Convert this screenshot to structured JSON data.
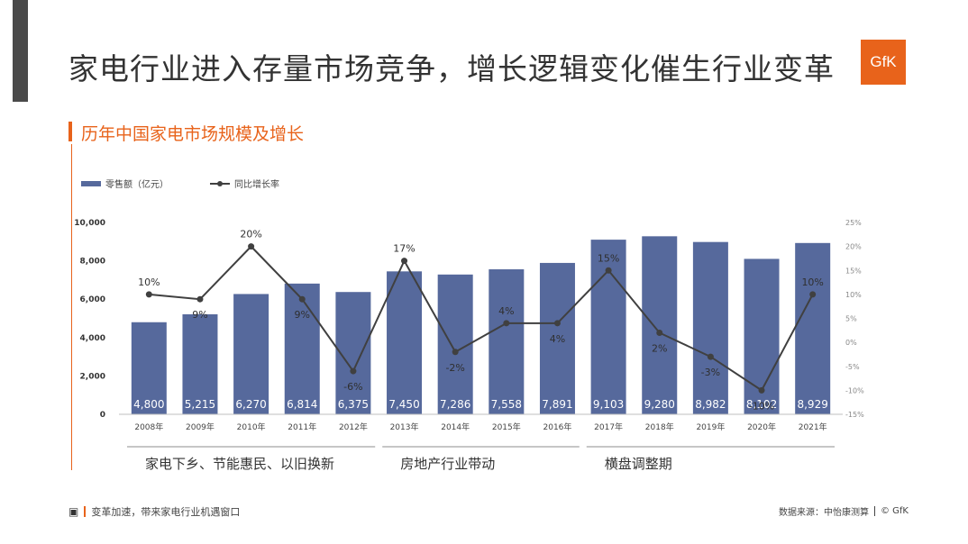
{
  "page": {
    "title": "家电行业进入存量市场竞争，增长逻辑变化催生行业变革",
    "logo_text": "GfK",
    "section_title": "历年中国家电市场规模及增长",
    "footer_left": "变革加速，带来家电行业机遇窗口",
    "footer_source": "数据来源：中怡康测算",
    "footer_copyright": "© GfK",
    "accent_color": "#e8631b"
  },
  "chart_data": {
    "type": "bar",
    "categories": [
      "2008年",
      "2009年",
      "2010年",
      "2011年",
      "2012年",
      "2013年",
      "2014年",
      "2015年",
      "2016年",
      "2017年",
      "2018年",
      "2019年",
      "2020年",
      "2021年"
    ],
    "series": [
      {
        "name": "零售额（亿元）",
        "type": "bar",
        "axis": "left",
        "color": "#56699c",
        "values": [
          4800,
          5215,
          6270,
          6814,
          6375,
          7450,
          7286,
          7558,
          7891,
          9103,
          9280,
          8982,
          8102,
          8929
        ],
        "labels": [
          "4,800",
          "5,215",
          "6,270",
          "6,814",
          "6,375",
          "7,450",
          "7,286",
          "7,558",
          "7,891",
          "9,103",
          "9,280",
          "8,982",
          "8,102",
          "8,929"
        ]
      },
      {
        "name": "同比增长率",
        "type": "line",
        "axis": "right",
        "color": "#404040",
        "values": [
          10,
          9,
          20,
          9,
          -6,
          17,
          -2,
          4,
          4,
          15,
          2,
          -3,
          -10,
          10
        ],
        "labels": [
          "10%",
          "9%",
          "20%",
          "9%",
          "-6%",
          "17%",
          "-2%",
          "4%",
          "4%",
          "15%",
          "2%",
          "-3%",
          "-10%",
          "10%"
        ]
      }
    ],
    "y_left": {
      "ylim": [
        0,
        10000
      ],
      "ticks": [
        "0",
        "2,000",
        "4,000",
        "6,000",
        "8,000",
        "10,000"
      ]
    },
    "y_right": {
      "ylim": [
        -15,
        25
      ],
      "ticks": [
        "-15%",
        "-10%",
        "-5%",
        "0%",
        "5%",
        "10%",
        "15%",
        "20%",
        "25%"
      ]
    },
    "legend": {
      "placement": "top-left"
    },
    "grid": false,
    "periods": [
      {
        "label": "家电下乡、节能惠民、以旧换新",
        "from": 0,
        "to": 4
      },
      {
        "label": "房地产行业带动",
        "from": 5,
        "to": 8
      },
      {
        "label": "横盘调整期",
        "from": 9,
        "to": 13
      }
    ]
  }
}
